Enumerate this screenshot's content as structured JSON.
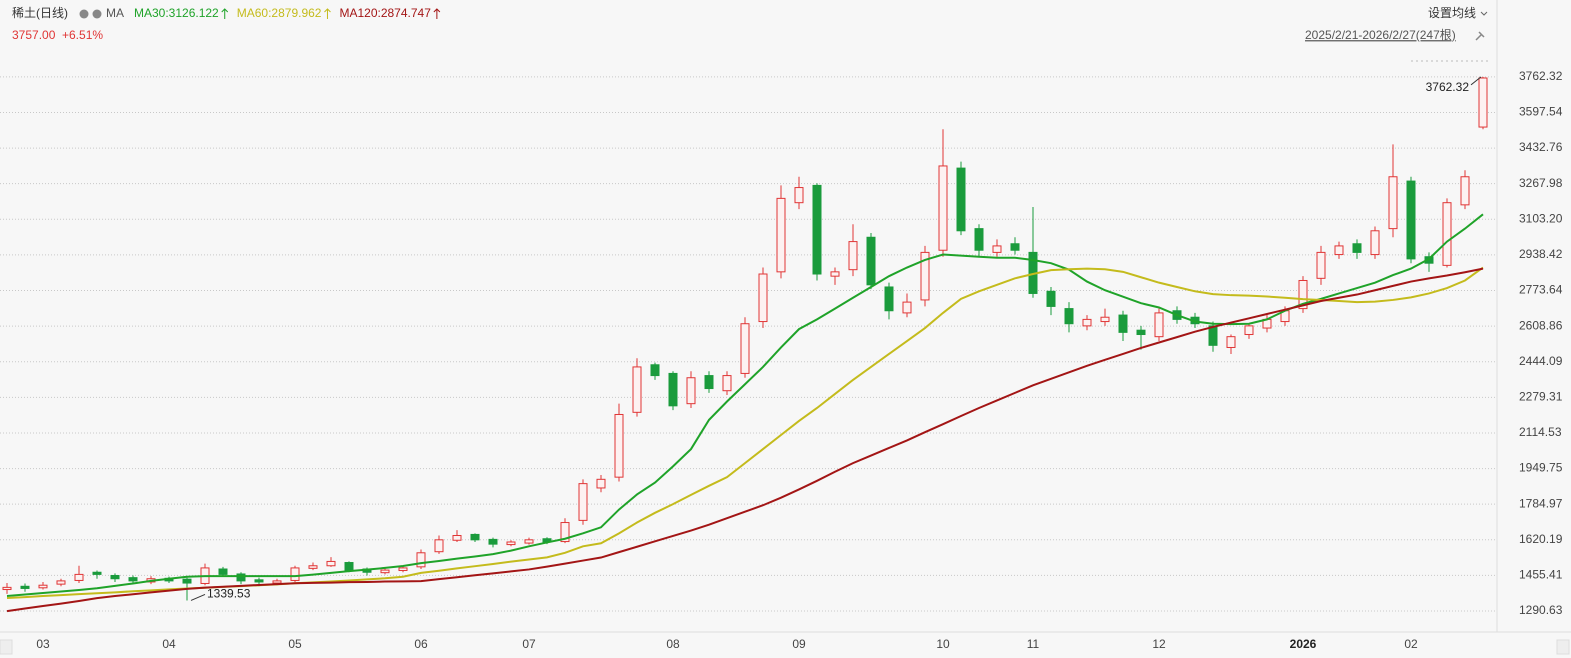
{
  "chart_data": {
    "type": "candlestick",
    "title": "稀土(日线)",
    "indicator": "MA",
    "price_label": "3757.00",
    "change_label": "+6.51%",
    "settings_label": "设置均线",
    "range_label": "2025/2/21-2026/2/27(247根)",
    "up_color": "#e03535",
    "down_color": "#1a9b3c",
    "categories": [
      null,
      null,
      "03",
      null,
      null,
      null,
      null,
      null,
      null,
      "04",
      null,
      null,
      null,
      null,
      null,
      null,
      "05",
      null,
      null,
      null,
      null,
      null,
      null,
      "06",
      null,
      null,
      null,
      null,
      null,
      "07",
      null,
      null,
      null,
      null,
      null,
      null,
      null,
      "08",
      null,
      null,
      null,
      null,
      null,
      null,
      "09",
      null,
      null,
      null,
      null,
      null,
      null,
      null,
      "10",
      null,
      null,
      null,
      null,
      "11",
      null,
      null,
      null,
      null,
      null,
      null,
      "12",
      null,
      null,
      null,
      null,
      null,
      null,
      null,
      "2026",
      null,
      null,
      null,
      null,
      null,
      "02",
      null,
      null,
      null,
      null
    ],
    "open": [
      1390,
      1405,
      1398,
      1415,
      1432,
      1470,
      1455,
      1445,
      1425,
      1442,
      1438,
      1418,
      1485,
      1462,
      1435,
      1420,
      1432,
      1488,
      1500,
      1515,
      1485,
      1468,
      1478,
      1495,
      1565,
      1618,
      1645,
      1622,
      1598,
      1605,
      1625,
      1612,
      1710,
      1860,
      1910,
      2210,
      2430,
      2390,
      2250,
      2380,
      2310,
      2390,
      2630,
      2860,
      3180,
      3260,
      2840,
      2870,
      3020,
      2790,
      2670,
      2730,
      2960,
      3340,
      3060,
      2950,
      2990,
      2950,
      2770,
      2690,
      2610,
      2630,
      2660,
      2590,
      2560,
      2680,
      2650,
      2610,
      2510,
      2570,
      2600,
      2630,
      2690,
      2830,
      2940,
      2990,
      2940,
      3060,
      3280,
      2930,
      2890,
      3170,
      3530
    ],
    "high": [
      1420,
      1418,
      1425,
      1440,
      1500,
      1478,
      1465,
      1455,
      1452,
      1450,
      1445,
      1510,
      1495,
      1470,
      1445,
      1440,
      1500,
      1515,
      1540,
      1520,
      1492,
      1490,
      1500,
      1575,
      1640,
      1665,
      1650,
      1630,
      1618,
      1630,
      1632,
      1720,
      1900,
      1920,
      2250,
      2460,
      2440,
      2400,
      2400,
      2400,
      2400,
      2650,
      2880,
      3260,
      3300,
      3270,
      2880,
      3080,
      3040,
      2810,
      2760,
      2980,
      3520,
      3370,
      3080,
      3010,
      3020,
      3160,
      2790,
      2720,
      2660,
      2690,
      2680,
      2610,
      2690,
      2700,
      2670,
      2630,
      2570,
      2620,
      2660,
      2700,
      2840,
      2980,
      3000,
      3010,
      3070,
      3450,
      3300,
      2950,
      3200,
      3330,
      3762.32
    ],
    "low": [
      1370,
      1380,
      1390,
      1405,
      1420,
      1440,
      1425,
      1420,
      1415,
      1420,
      1339.53,
      1410,
      1450,
      1415,
      1405,
      1410,
      1425,
      1480,
      1495,
      1470,
      1455,
      1460,
      1470,
      1485,
      1555,
      1610,
      1610,
      1585,
      1590,
      1598,
      1600,
      1605,
      1690,
      1840,
      1890,
      2190,
      2360,
      2220,
      2230,
      2300,
      2290,
      2370,
      2600,
      2830,
      3150,
      2820,
      2800,
      2840,
      2780,
      2640,
      2650,
      2700,
      2930,
      3030,
      2930,
      2930,
      2940,
      2740,
      2660,
      2580,
      2590,
      2610,
      2540,
      2500,
      2540,
      2620,
      2600,
      2490,
      2480,
      2550,
      2580,
      2610,
      2670,
      2800,
      2920,
      2920,
      2920,
      3020,
      2900,
      2860,
      2880,
      3150,
      3520
    ],
    "close": [
      1400,
      1395,
      1410,
      1430,
      1460,
      1460,
      1440,
      1430,
      1440,
      1430,
      1420,
      1490,
      1460,
      1430,
      1425,
      1430,
      1490,
      1500,
      1520,
      1480,
      1470,
      1480,
      1490,
      1560,
      1620,
      1640,
      1620,
      1600,
      1610,
      1620,
      1610,
      1700,
      1880,
      1900,
      2200,
      2420,
      2380,
      2240,
      2370,
      2320,
      2380,
      2620,
      2850,
      3200,
      3250,
      2850,
      2860,
      3000,
      2800,
      2680,
      2720,
      2950,
      3350,
      3050,
      2960,
      2980,
      2960,
      2760,
      2700,
      2620,
      2640,
      2650,
      2580,
      2570,
      2670,
      2640,
      2620,
      2520,
      2560,
      2610,
      2640,
      2680,
      2820,
      2950,
      2980,
      2950,
      3050,
      3300,
      2920,
      2900,
      3180,
      3300,
      3757
    ],
    "series": [
      {
        "name": "MA30:3126.122",
        "color": "#1fa329",
        "values": [
          1360,
          1367,
          1374,
          1381,
          1388,
          1396,
          1407,
          1418,
          1430,
          1440,
          1449,
          1452,
          1452,
          1452,
          1452,
          1452,
          1452,
          1459,
          1467,
          1475,
          1482,
          1490,
          1499,
          1512,
          1522,
          1533,
          1543,
          1554,
          1570,
          1590,
          1608,
          1625,
          1650,
          1678,
          1760,
          1830,
          1885,
          1960,
          2040,
          2175,
          2260,
          2340,
          2420,
          2510,
          2595,
          2640,
          2690,
          2740,
          2790,
          2840,
          2880,
          2915,
          2940,
          2935,
          2930,
          2925,
          2925,
          2915,
          2900,
          2870,
          2815,
          2775,
          2745,
          2715,
          2695,
          2660,
          2630,
          2620,
          2618,
          2620,
          2640,
          2680,
          2712,
          2735,
          2760,
          2785,
          2810,
          2845,
          2875,
          2920,
          3000,
          3060,
          3126.122
        ]
      },
      {
        "name": "MA60:2879.962",
        "color": "#c4bb1c",
        "values": [
          1351,
          1355,
          1360,
          1364,
          1369,
          1373,
          1377,
          1382,
          1386,
          1391,
          1395,
          1398,
          1402,
          1406,
          1410,
          1414,
          1419,
          1423,
          1427,
          1432,
          1437,
          1442,
          1449,
          1467,
          1477,
          1488,
          1498,
          1508,
          1519,
          1529,
          1539,
          1560,
          1590,
          1604,
          1650,
          1700,
          1745,
          1785,
          1828,
          1870,
          1910,
          1975,
          2040,
          2105,
          2170,
          2230,
          2295,
          2360,
          2420,
          2480,
          2540,
          2600,
          2670,
          2735,
          2770,
          2800,
          2830,
          2850,
          2868,
          2872,
          2875,
          2872,
          2860,
          2835,
          2810,
          2790,
          2770,
          2757,
          2752,
          2750,
          2746,
          2740,
          2734,
          2730,
          2725,
          2720,
          2722,
          2730,
          2742,
          2760,
          2785,
          2820,
          2879.962
        ]
      },
      {
        "name": "MA120:2874.747",
        "color": "#a31515",
        "values": [
          1290,
          1302,
          1314,
          1325,
          1337,
          1350,
          1360,
          1368,
          1377,
          1385,
          1393,
          1399,
          1403,
          1407,
          1411,
          1415,
          1419,
          1421,
          1422,
          1424,
          1425,
          1427,
          1428,
          1429,
          1438,
          1447,
          1456,
          1465,
          1474,
          1483,
          1496,
          1510,
          1524,
          1538,
          1563,
          1588,
          1613,
          1638,
          1663,
          1690,
          1720,
          1750,
          1780,
          1815,
          1853,
          1893,
          1935,
          1975,
          2010,
          2045,
          2080,
          2118,
          2155,
          2193,
          2230,
          2265,
          2300,
          2335,
          2365,
          2395,
          2425,
          2453,
          2480,
          2508,
          2533,
          2558,
          2583,
          2605,
          2625,
          2645,
          2665,
          2685,
          2705,
          2725,
          2740,
          2755,
          2775,
          2795,
          2815,
          2830,
          2843,
          2858,
          2874.747
        ]
      }
    ],
    "ylim": [
      1212,
      3831
    ],
    "yticks": [
      1290.63,
      1455.41,
      1620.19,
      1784.97,
      1949.75,
      2114.53,
      2279.31,
      2444.09,
      2608.86,
      2773.64,
      2938.42,
      {
        "value": 3103.2,
        "label": "3103.20"
      },
      3267.98,
      3432.76,
      3597.54,
      3762.32
    ],
    "grid": true
  }
}
